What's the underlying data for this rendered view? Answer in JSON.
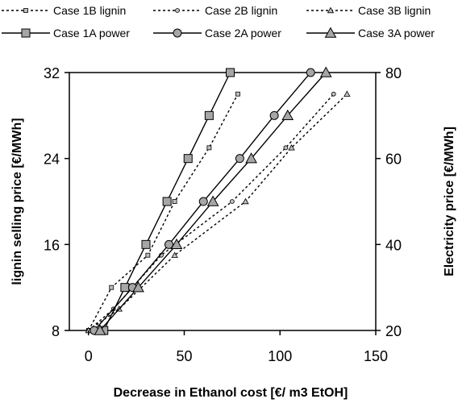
{
  "chart_data": {
    "type": "line",
    "title": "",
    "xlabel": "Decrease in Ethanol cost [€/ m3 EtOH]",
    "ylabel_left": "lignin selling price [€/MWh]",
    "ylabel_right": "Electricity price [€/MWh]",
    "xlim": [
      -10,
      150
    ],
    "ylim_left": [
      8,
      32
    ],
    "ylim_right": [
      20,
      80
    ],
    "xticks": [
      0,
      50,
      100,
      150
    ],
    "yticks_left": [
      8,
      16,
      24,
      32
    ],
    "yticks_right": [
      20,
      40,
      60,
      80
    ],
    "grid": false,
    "legend_position": "top",
    "series": [
      {
        "name": "Case 1B lignin",
        "axis": "left",
        "style": "dotted",
        "marker": "square",
        "marker_size": "small",
        "x": [
          0,
          12,
          31,
          45,
          63,
          78
        ],
        "y": [
          8,
          12,
          15,
          20,
          25,
          30
        ]
      },
      {
        "name": "Case 2B lignin",
        "axis": "left",
        "style": "dotted",
        "marker": "circle",
        "marker_size": "small",
        "x": [
          0,
          13,
          38,
          75,
          103,
          128
        ],
        "y": [
          8,
          10,
          15,
          20,
          25,
          30
        ]
      },
      {
        "name": "Case 3B lignin",
        "axis": "left",
        "style": "dotted",
        "marker": "triangle",
        "marker_size": "small",
        "x": [
          0,
          16,
          45,
          82,
          106,
          135
        ],
        "y": [
          8,
          10,
          15,
          20,
          25,
          30
        ]
      },
      {
        "name": "Case 1A power",
        "axis": "right",
        "style": "solid",
        "marker": "square",
        "marker_size": "large",
        "x": [
          8,
          19,
          30,
          41,
          52,
          63,
          74
        ],
        "y": [
          20,
          30,
          40,
          50,
          60,
          70,
          80
        ]
      },
      {
        "name": "Case 2A power",
        "axis": "right",
        "style": "solid",
        "marker": "circle",
        "marker_size": "large",
        "x": [
          3,
          23,
          42,
          60,
          79,
          97,
          116
        ],
        "y": [
          20,
          30,
          40,
          50,
          60,
          70,
          80
        ]
      },
      {
        "name": "Case 3A power",
        "axis": "right",
        "style": "solid",
        "marker": "triangle",
        "marker_size": "large",
        "x": [
          6,
          26,
          46,
          65,
          85,
          104,
          124
        ],
        "y": [
          20,
          30,
          40,
          50,
          60,
          70,
          80
        ]
      }
    ]
  }
}
